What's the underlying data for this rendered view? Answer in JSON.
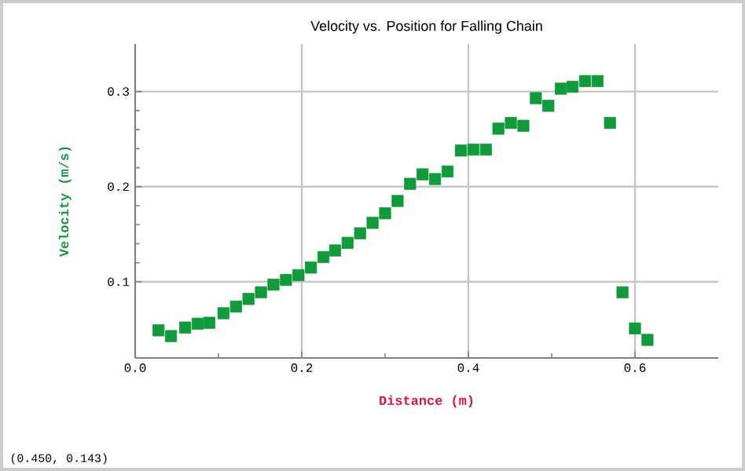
{
  "chart_data": {
    "type": "scatter",
    "title": "Velocity vs. Position for Falling Chain",
    "xlabel": "Distance (m)",
    "ylabel": "Velocity (m/s)",
    "annotations": [
      "(0.450, 0.143)"
    ],
    "x": [
      0.028,
      0.043,
      0.06,
      0.075,
      0.089,
      0.106,
      0.121,
      0.136,
      0.151,
      0.166,
      0.181,
      0.196,
      0.211,
      0.226,
      0.24,
      0.255,
      0.27,
      0.285,
      0.3,
      0.315,
      0.33,
      0.345,
      0.36,
      0.375,
      0.391,
      0.406,
      0.421,
      0.436,
      0.451,
      0.466,
      0.481,
      0.496,
      0.511,
      0.525,
      0.54,
      0.555,
      0.57,
      0.585,
      0.6,
      0.615
    ],
    "series": [
      {
        "color": "#109a3a",
        "values": [
          0.049,
          0.043,
          0.052,
          0.056,
          0.057,
          0.067,
          0.074,
          0.082,
          0.089,
          0.097,
          0.102,
          0.107,
          0.115,
          0.126,
          0.133,
          0.141,
          0.151,
          0.162,
          0.172,
          0.185,
          0.203,
          0.213,
          0.208,
          0.216,
          0.238,
          0.239,
          0.239,
          0.261,
          0.267,
          0.264,
          0.293,
          0.285,
          0.303,
          0.305,
          0.311,
          0.311,
          0.267,
          0.089,
          0.051,
          0.039
        ]
      }
    ],
    "xlim": [
      0,
      0.7
    ],
    "ylim": [
      0.02,
      0.35
    ],
    "xticks": [
      {
        "value": 0,
        "label": "0.0"
      },
      0.2,
      0.4,
      0.6
    ],
    "yticks": [
      0.1,
      0.2,
      0.3
    ],
    "grid": true,
    "marker": "square"
  }
}
